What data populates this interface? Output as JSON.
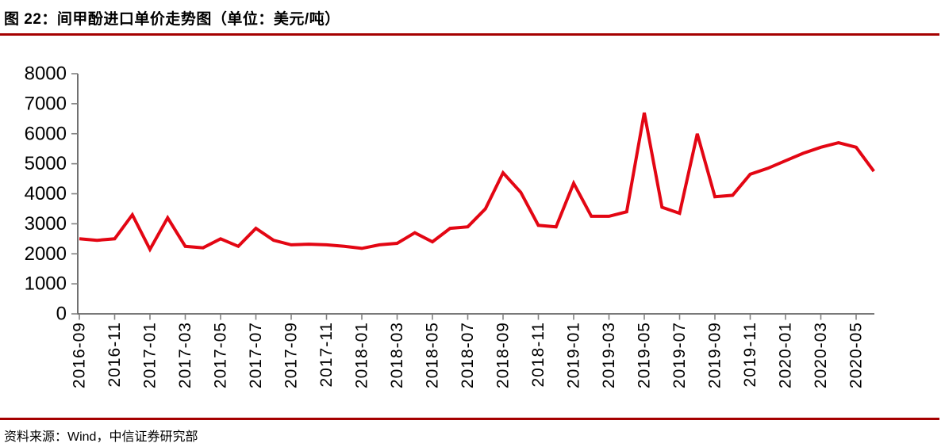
{
  "header": {
    "title": "图 22：间甲酚进口单价走势图（单位：美元/吨）"
  },
  "footer": {
    "source": "资料来源：Wind，中信证券研究部"
  },
  "colors": {
    "accent_rule": "#A50000",
    "line": "#E30613",
    "axis": "#4D4D4D",
    "tick": "#808080",
    "label": "#000000"
  },
  "chart_data": {
    "type": "line",
    "title": "图 22：间甲酚进口单价走势图（单位：美元/吨）",
    "series_name": "间甲酚进口单价",
    "unit": "美元/吨",
    "xlabel": "",
    "ylabel": "",
    "grid": false,
    "legend": "none",
    "ylim": [
      0,
      8000
    ],
    "ytick_interval": 1000,
    "xtick_every": 2,
    "line_color": "#E30613",
    "x": [
      "2016-09",
      "2016-10",
      "2016-11",
      "2016-12",
      "2017-01",
      "2017-02",
      "2017-03",
      "2017-04",
      "2017-05",
      "2017-06",
      "2017-07",
      "2017-08",
      "2017-09",
      "2017-10",
      "2017-11",
      "2017-12",
      "2018-01",
      "2018-02",
      "2018-03",
      "2018-04",
      "2018-05",
      "2018-06",
      "2018-07",
      "2018-08",
      "2018-09",
      "2018-10",
      "2018-11",
      "2018-12",
      "2019-01",
      "2019-02",
      "2019-03",
      "2019-04",
      "2019-05",
      "2019-06",
      "2019-07",
      "2019-08",
      "2019-09",
      "2019-10",
      "2019-11",
      "2019-12",
      "2020-01",
      "2020-02",
      "2020-03",
      "2020-04",
      "2020-05",
      "2020-06"
    ],
    "values": [
      2500,
      2450,
      2500,
      3300,
      2150,
      3200,
      2250,
      2200,
      2500,
      2250,
      2850,
      2450,
      2300,
      2320,
      2300,
      2250,
      2180,
      2300,
      2350,
      2700,
      2400,
      2850,
      2900,
      3500,
      4700,
      4050,
      2950,
      2900,
      4350,
      3250,
      3250,
      3400,
      6700,
      3550,
      3350,
      6000,
      3900,
      3950,
      4650,
      4850,
      5100,
      5350,
      5550,
      5700,
      5550,
      4750
    ]
  }
}
